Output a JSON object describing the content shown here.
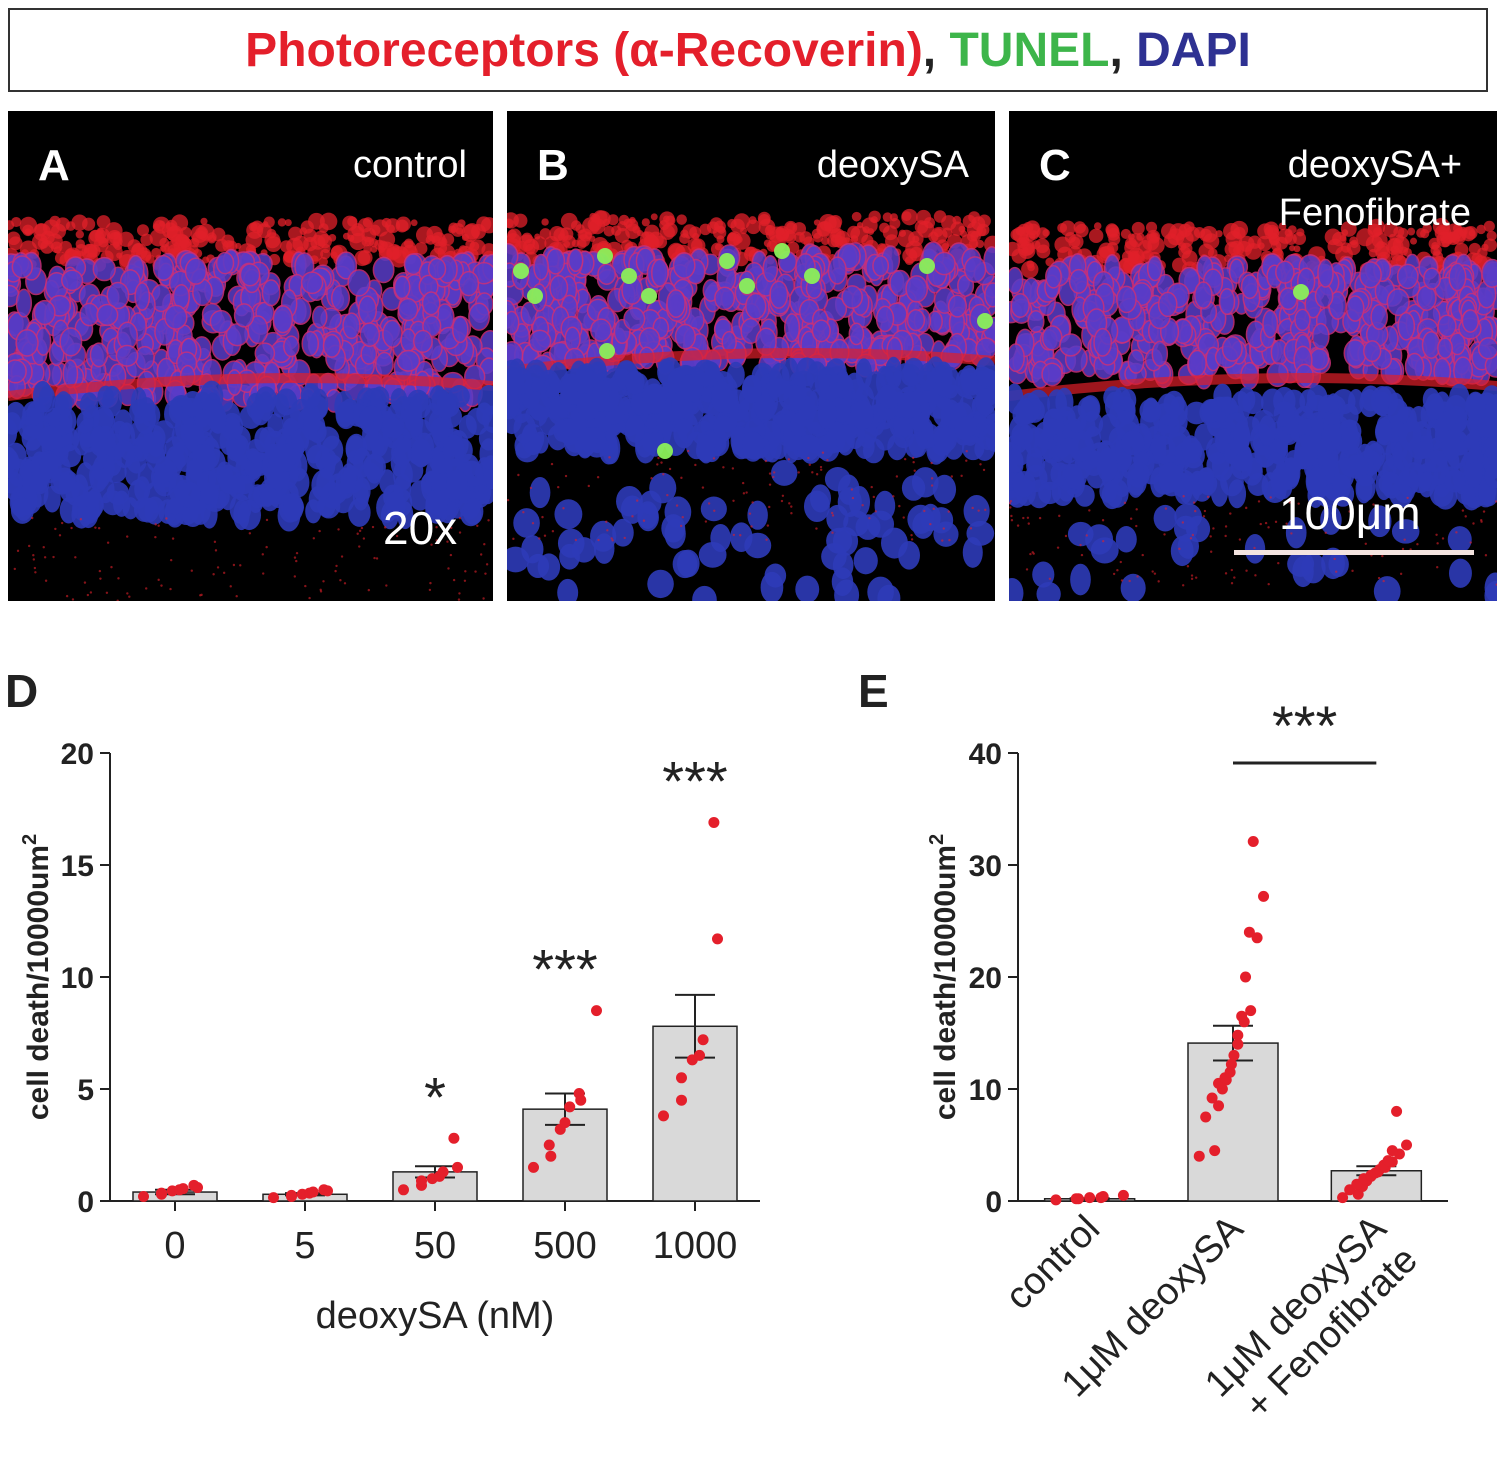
{
  "legend": {
    "parts": [
      {
        "text": "Photoreceptors (α-Recoverin)",
        "color": "#e41f2b"
      },
      {
        "text": ", ",
        "color": "#222222"
      },
      {
        "text": "TUNEL",
        "color": "#3db54a"
      },
      {
        "text": ", ",
        "color": "#222222"
      },
      {
        "text": "DAPI",
        "color": "#2e3192"
      }
    ]
  },
  "panels": [
    {
      "letter": "A",
      "label": "control",
      "extra": "20x"
    },
    {
      "letter": "B",
      "label": "deoxySA"
    },
    {
      "letter": "C",
      "label_line1": "deoxySA+",
      "label_line2": "Fenofibrate",
      "scale_label": "100μm"
    }
  ],
  "colors": {
    "point": "#e41f2b",
    "bar_fill": "#d9d9d9",
    "axis": "#222222",
    "dapi": "#2e3bb8",
    "recoverin": "#e0202a",
    "tunel": "#8bf05a"
  },
  "chart_data": [
    {
      "type": "bar",
      "panel_letter": "D",
      "categories": [
        "0",
        "5",
        "50",
        "500",
        "1000"
      ],
      "values": [
        0.4,
        0.3,
        1.3,
        4.1,
        7.8
      ],
      "sem": [
        0.1,
        0.05,
        0.25,
        0.7,
        1.4
      ],
      "points": [
        [
          0.2,
          0.3,
          0.35,
          0.45,
          0.5,
          0.55,
          0.6,
          0.7
        ],
        [
          0.15,
          0.2,
          0.25,
          0.3,
          0.35,
          0.4,
          0.45,
          0.5
        ],
        [
          0.5,
          0.7,
          0.9,
          1.0,
          1.1,
          1.3,
          1.5,
          2.8
        ],
        [
          1.5,
          2.0,
          2.5,
          3.2,
          3.5,
          4.2,
          4.5,
          4.8,
          8.5
        ],
        [
          3.8,
          4.5,
          5.5,
          6.3,
          6.5,
          7.2,
          11.7,
          16.9
        ]
      ],
      "significance": [
        "",
        "",
        "*",
        "***",
        "***"
      ],
      "xlabel": "deoxySA (nM)",
      "ylabel": "cell death/10000um",
      "ylabel_superscript": "2",
      "ylim": [
        0,
        20
      ],
      "yticks": [
        0,
        5,
        10,
        15,
        20
      ]
    },
    {
      "type": "bar",
      "panel_letter": "E",
      "categories": [
        "control",
        "1μM deoxySA",
        "1μM deoxySA + Fenofibrate"
      ],
      "category_lines": [
        [
          "control"
        ],
        [
          "1μM deoxySA"
        ],
        [
          "1μM deoxySA",
          "+ Fenofibrate"
        ]
      ],
      "values": [
        0.2,
        14.1,
        2.7
      ],
      "sem": [
        0.05,
        1.55,
        0.4
      ],
      "points": [
        [
          0.1,
          0.2,
          0.2,
          0.3,
          0.3,
          0.4,
          0.5
        ],
        [
          4.0,
          4.5,
          7.5,
          8.5,
          9.2,
          10.0,
          10.5,
          10.8,
          11.0,
          11.5,
          12.2,
          13.0,
          14.0,
          14.8,
          16.0,
          16.5,
          17.0,
          20.0,
          23.5,
          24.0,
          27.2,
          32.1
        ],
        [
          0.3,
          0.6,
          1.0,
          1.3,
          1.5,
          1.8,
          2.0,
          2.2,
          2.3,
          2.5,
          2.6,
          2.8,
          3.0,
          3.2,
          3.5,
          3.6,
          4.2,
          4.5,
          5.0,
          8.0
        ]
      ],
      "significance_bracket": {
        "from": 1,
        "to": 2,
        "text": "***"
      },
      "ylabel": "cell death/10000um",
      "ylabel_superscript": "2",
      "ylim": [
        0,
        40
      ],
      "yticks": [
        0,
        10,
        20,
        30,
        40
      ]
    }
  ]
}
